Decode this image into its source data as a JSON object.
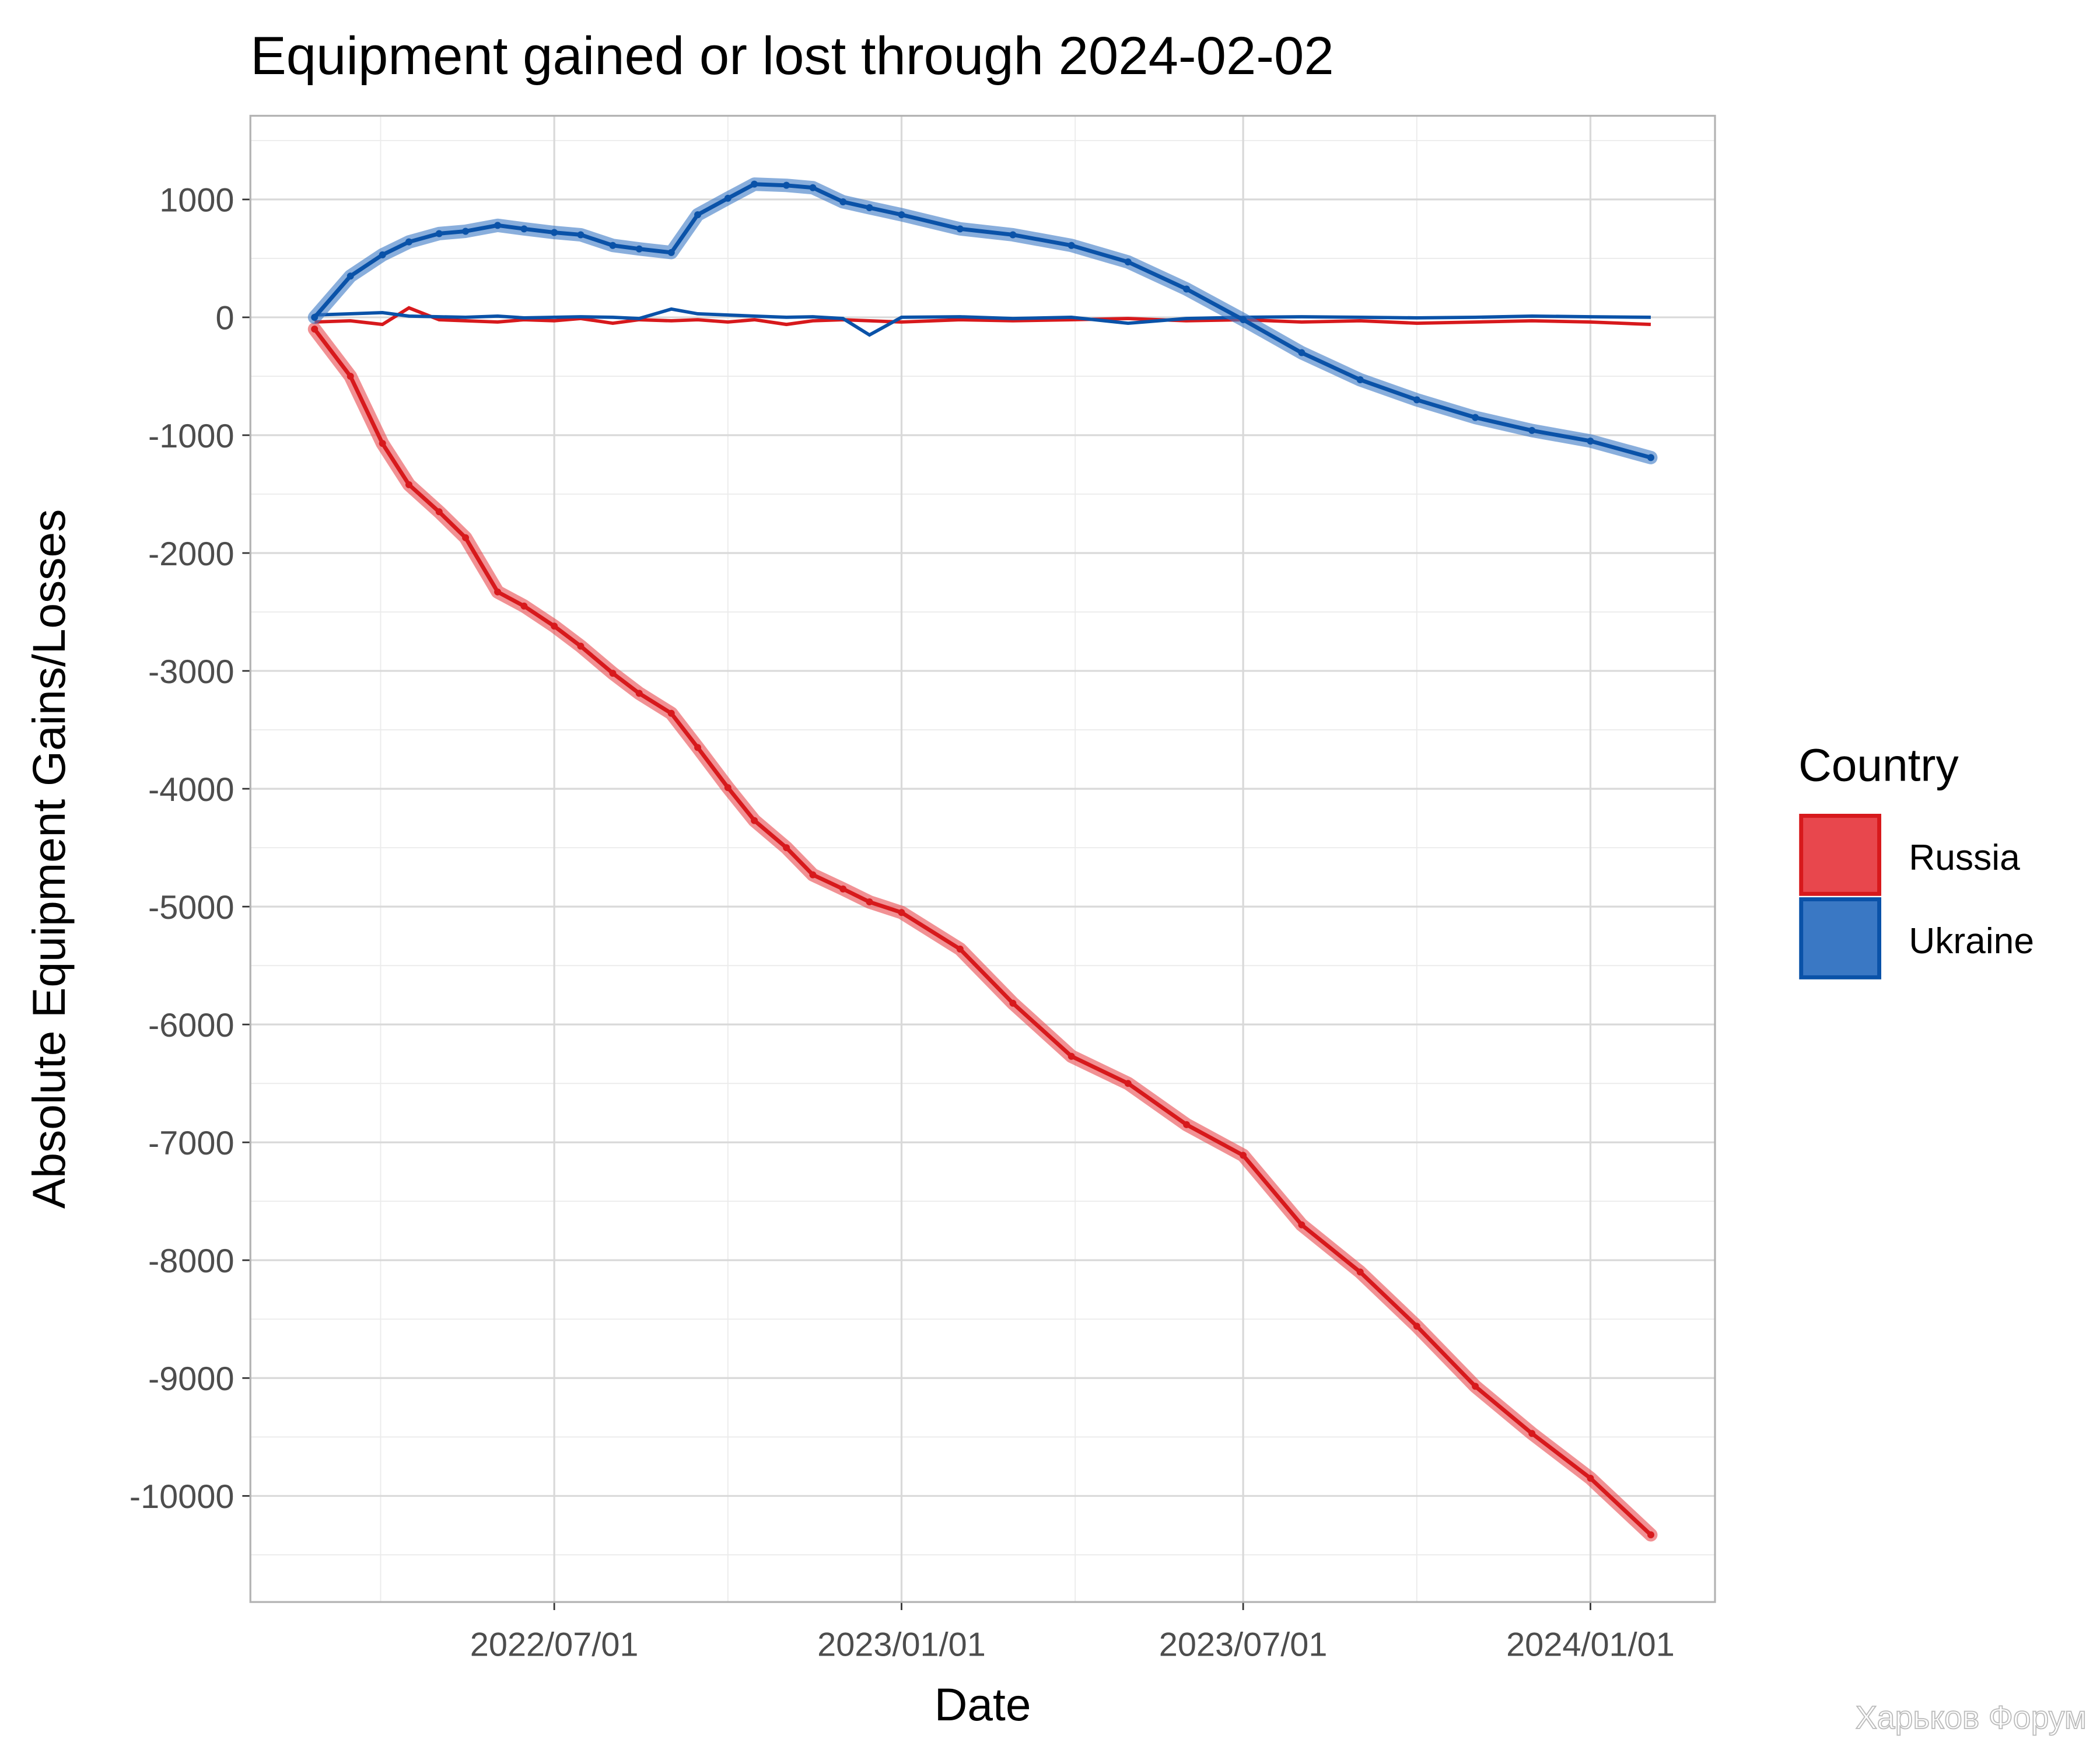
{
  "chart_data": {
    "type": "line",
    "title": "Equipment gained or lost through 2024-02-02",
    "xlabel": "Date",
    "ylabel": "Absolute Equipment Gains/Losses",
    "legend_title": "Country",
    "legend_position": "right",
    "grid": true,
    "watermark": "Харьков Форум",
    "x": [
      "2022-02-24",
      "2022-03-15",
      "2022-04-01",
      "2022-04-15",
      "2022-05-01",
      "2022-05-15",
      "2022-06-01",
      "2022-06-15",
      "2022-07-01",
      "2022-07-15",
      "2022-08-01",
      "2022-08-15",
      "2022-09-01",
      "2022-09-15",
      "2022-10-01",
      "2022-10-15",
      "2022-11-01",
      "2022-11-15",
      "2022-12-01",
      "2022-12-15",
      "2023-01-01",
      "2023-02-01",
      "2023-03-01",
      "2023-04-01",
      "2023-05-01",
      "2023-06-01",
      "2023-07-01",
      "2023-08-01",
      "2023-09-01",
      "2023-10-01",
      "2023-11-01",
      "2023-12-01",
      "2024-01-01",
      "2024-02-02"
    ],
    "xlim": [
      "2022-01-21",
      "2024-03-07"
    ],
    "xticks": [
      {
        "value": "2022-07-01",
        "label": "2022/07/01"
      },
      {
        "value": "2023-01-01",
        "label": "2023/01/01"
      },
      {
        "value": "2023-07-01",
        "label": "2023/07/01"
      },
      {
        "value": "2024-01-01",
        "label": "2024/01/01"
      }
    ],
    "ylim": [
      -10900,
      1710
    ],
    "yticks": [
      -10000,
      -9000,
      -8000,
      -7000,
      -6000,
      -5000,
      -4000,
      -3000,
      -2000,
      -1000,
      0,
      1000
    ],
    "series": [
      {
        "name": "Russia",
        "color": "#d7191c",
        "fill": "#e8474d",
        "values": [
          -100,
          -500,
          -1070,
          -1420,
          -1650,
          -1870,
          -2330,
          -2450,
          -2620,
          -2790,
          -3020,
          -3190,
          -3360,
          -3650,
          -3990,
          -4270,
          -4500,
          -4730,
          -4850,
          -4960,
          -5050,
          -5360,
          -5820,
          -6270,
          -6500,
          -6850,
          -7110,
          -7700,
          -8100,
          -8560,
          -9070,
          -9470,
          -9850,
          -10330
        ],
        "daily": [
          -40,
          -30,
          -60,
          80,
          -20,
          -30,
          -40,
          -20,
          -30,
          -10,
          -50,
          -20,
          -30,
          -20,
          -40,
          -20,
          -60,
          -30,
          -20,
          -30,
          -40,
          -20,
          -30,
          -20,
          -10,
          -30,
          -20,
          -40,
          -30,
          -50,
          -40,
          -30,
          -40,
          -60
        ]
      },
      {
        "name": "Ukraine",
        "color": "#0a52a8",
        "fill": "#3a78c4",
        "values": [
          0,
          350,
          530,
          640,
          710,
          730,
          780,
          750,
          720,
          700,
          610,
          580,
          550,
          870,
          1010,
          1130,
          1120,
          1100,
          980,
          930,
          870,
          750,
          700,
          610,
          470,
          240,
          -20,
          -300,
          -530,
          -700,
          -850,
          -960,
          -1050,
          -1190
        ],
        "daily": [
          20,
          30,
          40,
          10,
          5,
          0,
          10,
          -5,
          0,
          5,
          0,
          -10,
          70,
          30,
          20,
          10,
          0,
          5,
          -10,
          -150,
          0,
          5,
          -10,
          0,
          -50,
          -10,
          0,
          5,
          0,
          -5,
          0,
          10,
          5,
          0
        ]
      }
    ]
  }
}
